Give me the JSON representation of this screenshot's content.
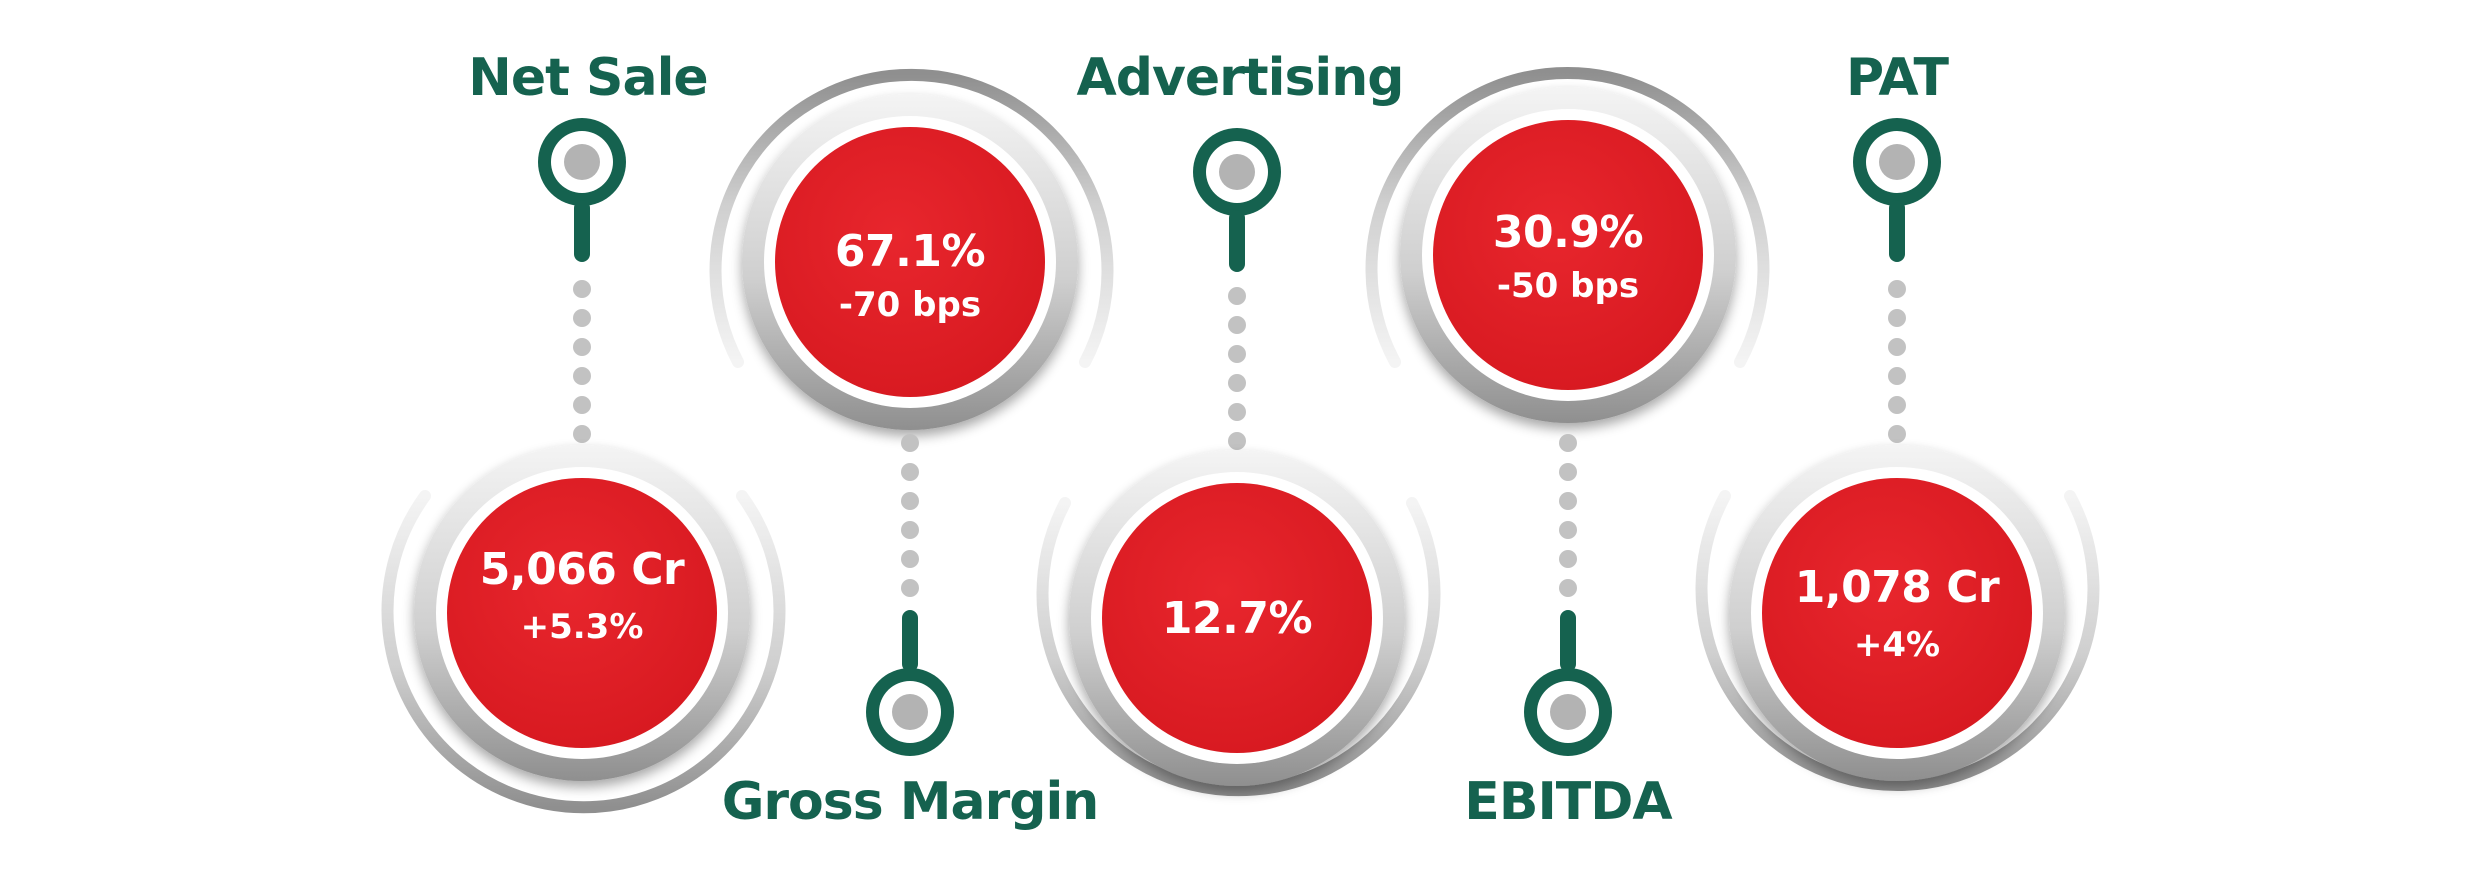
{
  "title": "",
  "colors": {
    "accent_red": "#e01f26",
    "brand_green": "#15624f",
    "ring_light": "#e6e6e6",
    "ring_dark": "#9b9b9b",
    "pin_center": "#b3b3b3",
    "dot": "#c2c2c2"
  },
  "metrics": [
    {
      "label": "Net Sale",
      "value": "5,066 Cr",
      "change": "+5.3%",
      "pin": "pin-icon"
    },
    {
      "label": "Gross Margin",
      "value": "67.1%",
      "change": "-70  bps",
      "pin": "pin-icon"
    },
    {
      "label": "Advertising",
      "value": "12.7%",
      "change": "",
      "pin": "pin-icon"
    },
    {
      "label": "EBITDA",
      "value": "30.9%",
      "change": "-50  bps",
      "pin": "pin-icon"
    },
    {
      "label": "PAT",
      "value": "1,078 Cr",
      "change": "+4%",
      "pin": "pin-icon"
    }
  ]
}
